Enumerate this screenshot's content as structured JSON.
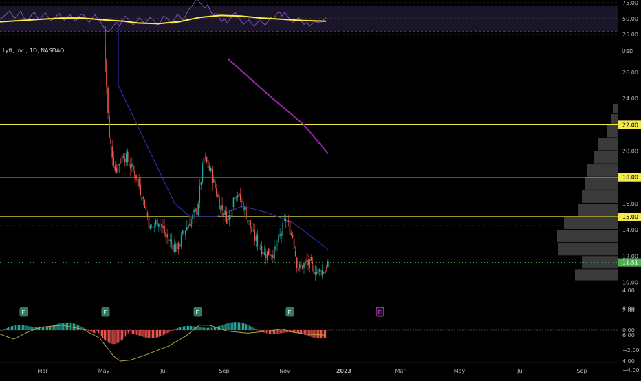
{
  "symbol_title": "Lyft, Inc., 1D, NASDAQ",
  "currency": "USD",
  "colors": {
    "background": "#000000",
    "up": "#26a69a",
    "down": "#ef5350",
    "candle_wick": "#7a7a7a",
    "rsi_line": "#7e57c2",
    "rsi_ma": "#ffeb3b",
    "rsi_band_fill": "#1a1529",
    "sma_short": "#2f2fa8",
    "sma_long": "#9c27b0",
    "hline": "#f5e94c",
    "hline_dashed": "#8d5fd3",
    "last_price_green": "#4caf50",
    "earnings_badge": "#2e7d5b",
    "earnings_future": "#c050d0",
    "macd_signal": "#b5a642",
    "axis_text": "#b2b5be",
    "volume_profile": "#3a3a3a"
  },
  "rsi_panel": {
    "ticks": [
      "75.00",
      "50.00",
      "25.00"
    ],
    "tick_values": [
      75,
      50,
      25
    ],
    "band": [
      30,
      70
    ],
    "rsi_points": [
      [
        0,
        49
      ],
      [
        6,
        54
      ],
      [
        10,
        58
      ],
      [
        14,
        62
      ],
      [
        18,
        55
      ],
      [
        22,
        51
      ],
      [
        26,
        56
      ],
      [
        30,
        62
      ],
      [
        34,
        53
      ],
      [
        38,
        46
      ],
      [
        42,
        50
      ],
      [
        46,
        56
      ],
      [
        50,
        60
      ],
      [
        54,
        52
      ],
      [
        58,
        49
      ],
      [
        62,
        55
      ],
      [
        66,
        59
      ],
      [
        70,
        52
      ],
      [
        74,
        47
      ],
      [
        78,
        49
      ],
      [
        82,
        54
      ],
      [
        86,
        58
      ],
      [
        90,
        51
      ],
      [
        94,
        47
      ],
      [
        98,
        52
      ],
      [
        102,
        56
      ],
      [
        106,
        50
      ],
      [
        110,
        46
      ],
      [
        114,
        52
      ],
      [
        118,
        57
      ],
      [
        122,
        55
      ],
      [
        126,
        48
      ],
      [
        130,
        44
      ],
      [
        134,
        51
      ],
      [
        138,
        56
      ],
      [
        142,
        50
      ],
      [
        146,
        45
      ],
      [
        150,
        38
      ],
      [
        154,
        31
      ],
      [
        158,
        29
      ],
      [
        162,
        34
      ],
      [
        166,
        40
      ],
      [
        170,
        44
      ],
      [
        174,
        38
      ],
      [
        178,
        47
      ],
      [
        182,
        54
      ],
      [
        186,
        50
      ],
      [
        190,
        44
      ],
      [
        194,
        40
      ],
      [
        198,
        45
      ],
      [
        202,
        51
      ],
      [
        206,
        48
      ],
      [
        210,
        42
      ],
      [
        214,
        47
      ],
      [
        218,
        52
      ],
      [
        222,
        49
      ],
      [
        226,
        44
      ],
      [
        230,
        40
      ],
      [
        234,
        46
      ],
      [
        238,
        54
      ],
      [
        242,
        52
      ],
      [
        246,
        46
      ],
      [
        250,
        42
      ],
      [
        254,
        50
      ],
      [
        258,
        57
      ],
      [
        262,
        52
      ],
      [
        266,
        48
      ],
      [
        270,
        55
      ],
      [
        274,
        64
      ],
      [
        278,
        69
      ],
      [
        282,
        74
      ],
      [
        286,
        82
      ],
      [
        290,
        76
      ],
      [
        294,
        71
      ],
      [
        298,
        67
      ],
      [
        302,
        72
      ],
      [
        306,
        62
      ],
      [
        310,
        55
      ],
      [
        314,
        58
      ],
      [
        318,
        52
      ],
      [
        322,
        45
      ],
      [
        326,
        50
      ],
      [
        330,
        43
      ],
      [
        334,
        48
      ],
      [
        338,
        55
      ],
      [
        342,
        60
      ],
      [
        346,
        52
      ],
      [
        350,
        47
      ],
      [
        354,
        41
      ],
      [
        358,
        45
      ],
      [
        362,
        48
      ],
      [
        366,
        42
      ],
      [
        370,
        38
      ],
      [
        374,
        44
      ],
      [
        378,
        47
      ],
      [
        382,
        43
      ],
      [
        386,
        40
      ],
      [
        390,
        46
      ],
      [
        394,
        52
      ],
      [
        398,
        49
      ],
      [
        402,
        57
      ],
      [
        406,
        61
      ],
      [
        410,
        54
      ],
      [
        414,
        60
      ],
      [
        418,
        54
      ],
      [
        422,
        48
      ],
      [
        426,
        43
      ],
      [
        430,
        47
      ],
      [
        434,
        52
      ],
      [
        438,
        46
      ],
      [
        442,
        41
      ],
      [
        446,
        44
      ],
      [
        450,
        38
      ],
      [
        454,
        42
      ],
      [
        458,
        46
      ],
      [
        462,
        44
      ],
      [
        466,
        43
      ],
      [
        470,
        48
      ],
      [
        474,
        52
      ]
    ],
    "rsi_ma_points": [
      [
        0,
        45
      ],
      [
        30,
        47
      ],
      [
        60,
        49
      ],
      [
        90,
        51
      ],
      [
        120,
        51
      ],
      [
        150,
        48
      ],
      [
        180,
        46
      ],
      [
        200,
        43
      ],
      [
        230,
        42
      ],
      [
        260,
        45
      ],
      [
        290,
        52
      ],
      [
        320,
        55
      ],
      [
        350,
        54
      ],
      [
        380,
        51
      ],
      [
        410,
        49
      ],
      [
        440,
        47
      ],
      [
        474,
        46
      ]
    ]
  },
  "price_axis": {
    "ticks": [
      "26.00",
      "24.00",
      "22.00",
      "20.00",
      "18.00",
      "16.00",
      "14.00",
      "12.00",
      "10.00",
      "8.00",
      "6.00",
      "4.00"
    ],
    "tick_values": [
      26,
      24,
      22,
      20,
      18,
      16,
      14,
      12,
      10,
      8,
      6,
      4
    ],
    "horizontal_levels": [
      22,
      18,
      15
    ],
    "horizontal_level_labels": [
      "22.00",
      "18.00",
      "15.00"
    ],
    "dashed_level": 14.3,
    "last_price": 11.51,
    "last_price_label": "11.51"
  },
  "time_axis": {
    "labels": [
      "Mar",
      "May",
      "Jul",
      "Sep",
      "Nov",
      "2023",
      "Mar",
      "May",
      "Jul",
      "Sep"
    ]
  },
  "earnings_markers": [
    "E",
    "E",
    "E",
    "E",
    "E"
  ],
  "macd_panel": {
    "ticks": [
      "4.00",
      "2.00",
      "0.00",
      "−2.00",
      "−4.00"
    ],
    "tick_values": [
      4,
      2,
      0,
      -2,
      -4
    ]
  },
  "chart_data": {
    "type": "candlestick",
    "title": "Lyft, Inc., 1D, NASDAQ",
    "y_unit": "USD",
    "ylim": [
      3.5,
      30
    ],
    "x_range": [
      "2022-02",
      "2023-09"
    ],
    "price_close_samples": [
      {
        "date": "2022-05-02",
        "close": 27
      },
      {
        "date": "2022-05-06",
        "close": 21
      },
      {
        "date": "2022-05-12",
        "close": 18.5
      },
      {
        "date": "2022-05-20",
        "close": 19.8
      },
      {
        "date": "2022-06-01",
        "close": 18.2
      },
      {
        "date": "2022-06-10",
        "close": 16
      },
      {
        "date": "2022-06-16",
        "close": 14
      },
      {
        "date": "2022-06-24",
        "close": 14.8
      },
      {
        "date": "2022-07-01",
        "close": 13.5
      },
      {
        "date": "2022-07-12",
        "close": 12.5
      },
      {
        "date": "2022-07-20",
        "close": 14
      },
      {
        "date": "2022-08-01",
        "close": 15.5
      },
      {
        "date": "2022-08-08",
        "close": 19.5
      },
      {
        "date": "2022-08-15",
        "close": 18.3
      },
      {
        "date": "2022-08-24",
        "close": 15.8
      },
      {
        "date": "2022-09-01",
        "close": 14.7
      },
      {
        "date": "2022-09-08",
        "close": 17
      },
      {
        "date": "2022-09-15",
        "close": 16
      },
      {
        "date": "2022-09-26",
        "close": 13.5
      },
      {
        "date": "2022-10-07",
        "close": 12.2
      },
      {
        "date": "2022-10-17",
        "close": 12.3
      },
      {
        "date": "2022-10-28",
        "close": 14.8
      },
      {
        "date": "2022-11-04",
        "close": 13.5
      },
      {
        "date": "2022-11-09",
        "close": 11
      },
      {
        "date": "2022-11-18",
        "close": 11.5
      },
      {
        "date": "2022-11-28",
        "close": 10.8
      },
      {
        "date": "2022-12-05",
        "close": 10.9
      },
      {
        "date": "2022-12-09",
        "close": 11.51
      }
    ],
    "sma_short_samples": [
      {
        "date": "2022-05-15",
        "value": 25
      },
      {
        "date": "2022-06-15",
        "value": 20
      },
      {
        "date": "2022-07-10",
        "value": 16
      },
      {
        "date": "2022-07-25",
        "value": 15
      },
      {
        "date": "2022-08-20",
        "value": 15
      },
      {
        "date": "2022-09-15",
        "value": 15.8
      },
      {
        "date": "2022-10-10",
        "value": 15.3
      },
      {
        "date": "2022-11-05",
        "value": 14.5
      },
      {
        "date": "2022-12-09",
        "value": 12.5
      }
    ],
    "sma_long_samples": [
      {
        "date": "2022-09-01",
        "value": 27
      },
      {
        "date": "2022-10-15",
        "value": 24
      },
      {
        "date": "2022-11-15",
        "value": 22
      },
      {
        "date": "2022-12-09",
        "value": 19.8
      }
    ],
    "horizontal_levels": [
      22,
      18,
      15
    ],
    "dashed_level": 14.3,
    "last_price": 11.51
  }
}
